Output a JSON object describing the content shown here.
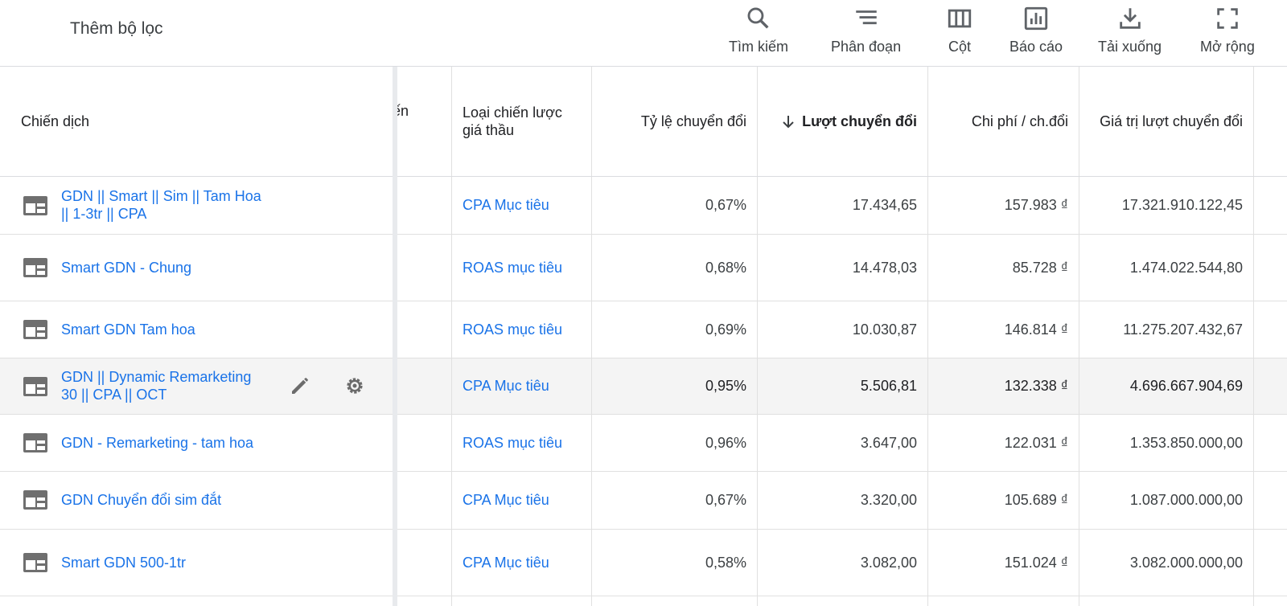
{
  "toolbar": {
    "filter_label": "Thêm bộ lọc",
    "tools": [
      {
        "label": "Tìm kiếm",
        "icon": "search-icon"
      },
      {
        "label": "Phân đoạn",
        "icon": "segment-icon"
      },
      {
        "label": "Cột",
        "icon": "columns-icon"
      },
      {
        "label": "Báo cáo",
        "icon": "report-icon"
      },
      {
        "label": "Tải xuống",
        "icon": "download-icon"
      },
      {
        "label": "Mở rộng",
        "icon": "expand-icon"
      }
    ]
  },
  "table": {
    "headers": {
      "campaign": "Chiến dịch",
      "partial": "ến",
      "bid_strategy_line1": "Loại chiến lược",
      "bid_strategy_line2": "giá thầu",
      "conv_rate": "Tỷ lệ chuyển đổi",
      "conversions": "Lượt chuyển đổi",
      "cost_per_conv": "Chi phí / ch.đổi",
      "conv_value": "Giá trị lượt chuyển đổi"
    },
    "rows": [
      {
        "name_line1": "GDN || Smart || Sim || Tam Hoa",
        "name_line2": "|| 1-3tr || CPA",
        "strategy": "CPA Mục tiêu",
        "conv_rate": "0,67%",
        "conversions": "17.434,65",
        "cost_per_conv": "157.983 ₫",
        "conv_value": "17.321.910.122,45"
      },
      {
        "name_line1": "Smart GDN - Chung",
        "name_line2": "",
        "strategy": "ROAS mục tiêu",
        "conv_rate": "0,68%",
        "conversions": "14.478,03",
        "cost_per_conv": "85.728 ₫",
        "conv_value": "1.474.022.544,80"
      },
      {
        "name_line1": "Smart GDN Tam hoa",
        "name_line2": "",
        "strategy": "ROAS mục tiêu",
        "conv_rate": "0,69%",
        "conversions": "10.030,87",
        "cost_per_conv": "146.814 ₫",
        "conv_value": "11.275.207.432,67"
      },
      {
        "name_line1": "GDN || Dynamic Remarketing",
        "name_line2": "30 || CPA || OCT",
        "strategy": "CPA Mục tiêu",
        "conv_rate": "0,95%",
        "conversions": "5.506,81",
        "cost_per_conv": "132.338 ₫",
        "conv_value": "4.696.667.904,69"
      },
      {
        "name_line1": "GDN - Remarketing - tam hoa",
        "name_line2": "",
        "strategy": "ROAS mục tiêu",
        "conv_rate": "0,96%",
        "conversions": "3.647,00",
        "cost_per_conv": "122.031 ₫",
        "conv_value": "1.353.850.000,00"
      },
      {
        "name_line1": "GDN Chuyển đổi sim đắt",
        "name_line2": "",
        "strategy": "CPA Mục tiêu",
        "conv_rate": "0,67%",
        "conversions": "3.320,00",
        "cost_per_conv": "105.689 ₫",
        "conv_value": "1.087.000.000,00"
      },
      {
        "name_line1": "Smart GDN 500-1tr",
        "name_line2": "",
        "strategy": "CPA Mục tiêu",
        "conv_rate": "0,58%",
        "conversions": "3.082,00",
        "cost_per_conv": "151.024 ₫",
        "conv_value": "3.082.000.000,00"
      }
    ]
  },
  "colors": {
    "link": "#1a73e8",
    "icon": "#5f6368",
    "border": "#e0e0e0",
    "hover_row": "#f4f4f4"
  }
}
